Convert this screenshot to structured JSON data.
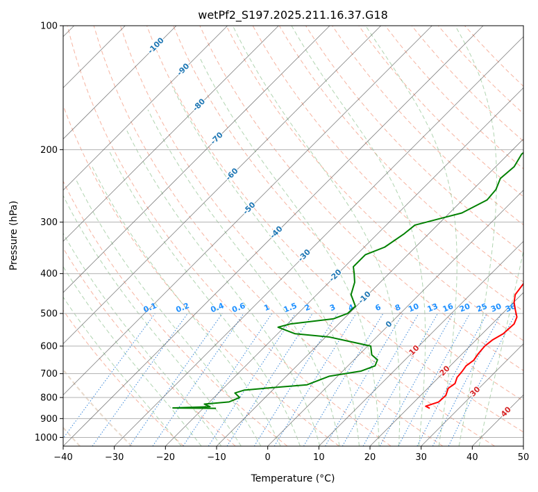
{
  "chart_data": {
    "type": "line",
    "title": "wetPf2_S197.2025.211.16.37.G18",
    "xlabel": "Temperature (°C)",
    "ylabel": "Pressure (hPa)",
    "xlim": [
      -40,
      50
    ],
    "ylim": [
      1050,
      100
    ],
    "y_scale": "log",
    "grid": true,
    "x_ticks": [
      -40,
      -30,
      -20,
      -10,
      0,
      10,
      20,
      30,
      40,
      50
    ],
    "x_tick_labels": [
      "−40",
      "−30",
      "−20",
      "−10",
      "0",
      "10",
      "20",
      "30",
      "40",
      "50"
    ],
    "y_ticks": [
      1000,
      900,
      800,
      700,
      600,
      500,
      400,
      300,
      200,
      100
    ],
    "y_tick_labels": [
      "1000",
      "900",
      "800",
      "700",
      "600",
      "500",
      "400",
      "300",
      "200",
      "100"
    ],
    "colors": {
      "temperature": "#ff0000",
      "dewpoint": "#008000",
      "isotherm": "#555555",
      "dry_adiabat": "#f08060",
      "moist_adiabat": "#70b070",
      "mixing_ratio": "#1f77d4",
      "isotherm_label": "#1f77b4",
      "adiabat_label": "#d62728",
      "mixing_label": "#1e90ff"
    },
    "isotherm_labels": [
      {
        "t": -100,
        "text": "-100",
        "p": 112
      },
      {
        "t": -90,
        "text": "-90",
        "p": 128
      },
      {
        "t": -80,
        "text": "-80",
        "p": 156
      },
      {
        "t": -70,
        "text": "-70",
        "p": 188
      },
      {
        "t": -60,
        "text": "-60",
        "p": 230
      },
      {
        "t": -50,
        "text": "-50",
        "p": 278
      },
      {
        "t": -40,
        "text": "-40",
        "p": 318
      },
      {
        "t": -30,
        "text": "-30",
        "p": 362
      },
      {
        "t": -20,
        "text": "-20",
        "p": 405
      },
      {
        "t": -10,
        "text": "-10",
        "p": 458
      },
      {
        "t": 0,
        "text": "0",
        "p": 532
      }
    ],
    "adiabat_labels": [
      {
        "t": 10,
        "text": "10",
        "p": 615
      },
      {
        "t": 20,
        "text": "20",
        "p": 690
      },
      {
        "t": 30,
        "text": "30",
        "p": 775
      },
      {
        "t": 40,
        "text": "40",
        "p": 868
      }
    ],
    "mixing_ratio_labels": [
      {
        "w": 0.1,
        "text": "0.1"
      },
      {
        "w": 0.2,
        "text": "0.2"
      },
      {
        "w": 0.4,
        "text": "0.4"
      },
      {
        "w": 0.6,
        "text": "0.6"
      },
      {
        "w": 1,
        "text": "1"
      },
      {
        "w": 1.5,
        "text": "1.5"
      },
      {
        "w": 2,
        "text": "2"
      },
      {
        "w": 3,
        "text": "3"
      },
      {
        "w": 4,
        "text": "4"
      },
      {
        "w": 6,
        "text": "6"
      },
      {
        "w": 8,
        "text": "8"
      },
      {
        "w": 10,
        "text": "10"
      },
      {
        "w": 13,
        "text": "13"
      },
      {
        "w": 16,
        "text": "16"
      },
      {
        "w": 20,
        "text": "20"
      },
      {
        "w": 25,
        "text": "25"
      },
      {
        "w": 30,
        "text": "30"
      },
      {
        "w": 36,
        "text": "36"
      }
    ],
    "series": [
      {
        "key": "temperature",
        "points": [
          [
            850,
            24.3
          ],
          [
            840,
            23.1
          ],
          [
            820,
            24.8
          ],
          [
            790,
            24.9
          ],
          [
            760,
            24.0
          ],
          [
            740,
            24.4
          ],
          [
            715,
            23.6
          ],
          [
            690,
            23.4
          ],
          [
            670,
            23.1
          ],
          [
            650,
            23.5
          ],
          [
            625,
            23.1
          ],
          [
            600,
            22.9
          ],
          [
            580,
            23.2
          ],
          [
            560,
            24.1
          ],
          [
            530,
            24.3
          ],
          [
            510,
            23.5
          ],
          [
            490,
            21.8
          ],
          [
            470,
            20.1
          ],
          [
            450,
            18.8
          ],
          [
            420,
            18.2
          ],
          [
            380,
            16.5
          ],
          [
            340,
            13.7
          ],
          [
            300,
            11.0
          ],
          [
            265,
            6.7
          ],
          [
            235,
            3.6
          ],
          [
            210,
            1.2
          ],
          [
            195,
            0.3
          ],
          [
            170,
            -0.4
          ],
          [
            150,
            -1.2
          ],
          [
            130,
            -1.0
          ],
          [
            115,
            0.8
          ],
          [
            100,
            4.0
          ]
        ]
      },
      {
        "key": "dewpoint",
        "points": [
          [
            850,
            -17.5
          ],
          [
            848,
            -26.0
          ],
          [
            842,
            -19.0
          ],
          [
            830,
            -20.6
          ],
          [
            820,
            -16.2
          ],
          [
            800,
            -15.0
          ],
          [
            780,
            -16.8
          ],
          [
            768,
            -15.6
          ],
          [
            760,
            -12.0
          ],
          [
            745,
            -4.3
          ],
          [
            710,
            -1.6
          ],
          [
            690,
            3.6
          ],
          [
            670,
            5.3
          ],
          [
            648,
            4.6
          ],
          [
            630,
            2.5
          ],
          [
            600,
            0.6
          ],
          [
            570,
            -9.4
          ],
          [
            560,
            -16.6
          ],
          [
            540,
            -21.2
          ],
          [
            530,
            -19.4
          ],
          [
            515,
            -12.0
          ],
          [
            500,
            -10.3
          ],
          [
            480,
            -10.2
          ],
          [
            450,
            -13.3
          ],
          [
            420,
            -15.0
          ],
          [
            400,
            -16.8
          ],
          [
            385,
            -18.3
          ],
          [
            360,
            -18.3
          ],
          [
            345,
            -16.0
          ],
          [
            320,
            -14.8
          ],
          [
            305,
            -14.4
          ],
          [
            285,
            -7.6
          ],
          [
            265,
            -5.2
          ],
          [
            250,
            -5.5
          ],
          [
            235,
            -6.8
          ],
          [
            220,
            -6.4
          ],
          [
            205,
            -7.4
          ],
          [
            190,
            -6.4
          ],
          [
            160,
            -2.0
          ],
          [
            130,
            -0.5
          ],
          [
            110,
            -0.4
          ],
          [
            100,
            4.0
          ]
        ]
      }
    ]
  }
}
